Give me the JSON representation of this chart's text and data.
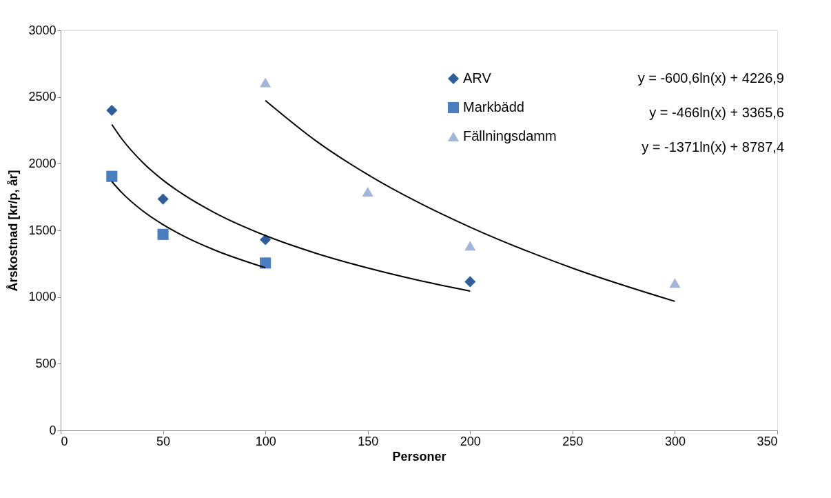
{
  "chart_data": {
    "type": "scatter",
    "xlabel": "Personer",
    "ylabel": "Årskostnad [kr/p, år]",
    "xlim": [
      0,
      350
    ],
    "xticks": [
      0,
      50,
      100,
      150,
      200,
      250,
      300,
      350
    ],
    "ylim": [
      0,
      3000
    ],
    "yticks": [
      0,
      500,
      1000,
      1500,
      2000,
      2500,
      3000
    ],
    "grid": false,
    "legend": "top right",
    "annotations": [
      "y = -600,6ln(x) + 4226,9",
      "y = -466ln(x) + 3365,6",
      "y = -1371ln(x) + 8787,4"
    ],
    "series": [
      {
        "name": "ARV",
        "marker": "diamond",
        "color": "#2e5f9a",
        "x": [
          25,
          50,
          100,
          200
        ],
        "values": [
          2400,
          1735,
          1430,
          1115
        ]
      },
      {
        "name": "Markbädd",
        "marker": "square",
        "color": "#4a7ebf",
        "x": [
          25,
          50,
          100
        ],
        "values": [
          1905,
          1470,
          1255
        ]
      },
      {
        "name": "Fällningsdamm",
        "marker": "triangle",
        "color": "#a3b5d8",
        "x": [
          100,
          150,
          200,
          300
        ],
        "values": [
          2610,
          1790,
          1385,
          1105
        ]
      },
      {
        "type": "line",
        "color": "#000000",
        "marker": "none",
        "x": [
          25,
          30,
          40,
          50,
          60,
          75,
          100,
          125,
          150,
          175,
          200
        ],
        "values": [
          2294,
          2184,
          2011,
          1877,
          1768,
          1634,
          1461,
          1327,
          1218,
          1125,
          1045
        ]
      },
      {
        "type": "line",
        "color": "#000000",
        "marker": "none",
        "x": [
          25,
          30,
          40,
          50,
          60,
          75,
          100
        ],
        "values": [
          1866,
          1781,
          1647,
          1543,
          1458,
          1354,
          1220
        ]
      },
      {
        "type": "line",
        "color": "#000000",
        "marker": "none",
        "x": [
          100,
          125,
          150,
          175,
          200,
          250,
          300
        ],
        "values": [
          2474,
          2168,
          1918,
          1707,
          1524,
          1217,
          968
        ]
      }
    ]
  }
}
